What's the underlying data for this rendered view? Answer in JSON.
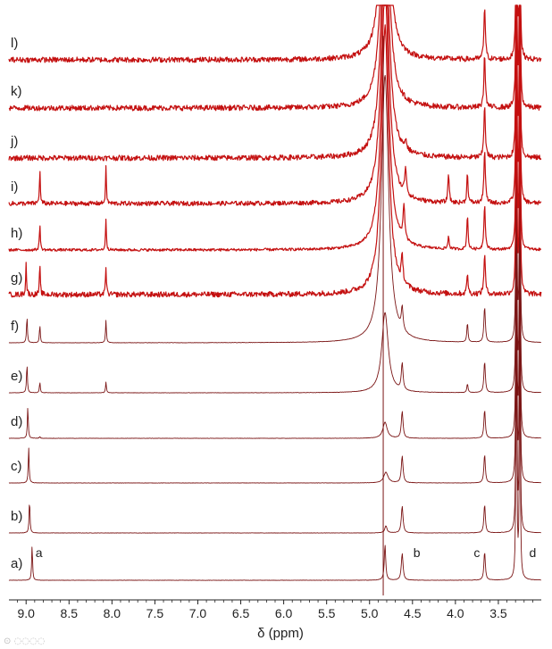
{
  "chart_data": {
    "type": "line",
    "title": "",
    "xlabel": "δ (ppm)",
    "ylabel": "",
    "xlim": [
      9.2,
      3.0
    ],
    "x_reversed": true,
    "grid": false,
    "x_ticks": [
      "9.0",
      "8.5",
      "8.0",
      "7.5",
      "7.0",
      "6.5",
      "6.0",
      "5.5",
      "5.0",
      "4.5",
      "4.0",
      "3.5"
    ],
    "x_tick_values": [
      9.0,
      8.5,
      8.0,
      7.5,
      7.0,
      6.5,
      6.0,
      5.5,
      5.0,
      4.5,
      4.0,
      3.5
    ],
    "colors": {
      "bright": "#c41010",
      "dark": "#7a1414",
      "axis": "#222222"
    },
    "peak_labels": [
      {
        "text": "a",
        "ppm": 8.85
      },
      {
        "text": "b",
        "ppm": 4.45
      },
      {
        "text": "c",
        "ppm": 3.75
      },
      {
        "text": "d",
        "ppm": 3.1
      }
    ],
    "spectra": [
      {
        "label": "a)",
        "baseline": 650,
        "noise": 0.2,
        "water": {
          "ppm": 4.82,
          "height": 40,
          "width": 0.01
        },
        "peaks": [
          {
            "ppm": 8.93,
            "height": 40,
            "width": 0.006
          },
          {
            "ppm": 4.62,
            "height": 30,
            "width": 0.012
          },
          {
            "ppm": 3.66,
            "height": 32,
            "width": 0.01
          },
          {
            "ppm": 3.29,
            "height": 300,
            "width": 0.006
          },
          {
            "ppm": 3.25,
            "height": 280,
            "width": 0.006
          }
        ]
      },
      {
        "label": "b)",
        "baseline": 597,
        "noise": 0.2,
        "water": {
          "ppm": 4.81,
          "height": 8,
          "width": 0.015
        },
        "peaks": [
          {
            "ppm": 8.96,
            "height": 38,
            "width": 0.006
          },
          {
            "ppm": 4.62,
            "height": 30,
            "width": 0.012
          },
          {
            "ppm": 3.66,
            "height": 32,
            "width": 0.01
          },
          {
            "ppm": 3.29,
            "height": 300,
            "width": 0.006
          },
          {
            "ppm": 3.25,
            "height": 280,
            "width": 0.006
          }
        ]
      },
      {
        "label": "c)",
        "baseline": 541,
        "noise": 0.2,
        "water": {
          "ppm": 4.81,
          "height": 12,
          "width": 0.03
        },
        "peaks": [
          {
            "ppm": 8.97,
            "height": 40,
            "width": 0.006
          },
          {
            "ppm": 4.62,
            "height": 30,
            "width": 0.012
          },
          {
            "ppm": 3.66,
            "height": 32,
            "width": 0.01
          },
          {
            "ppm": 3.29,
            "height": 300,
            "width": 0.006
          },
          {
            "ppm": 3.25,
            "height": 280,
            "width": 0.006
          }
        ]
      },
      {
        "label": "d)",
        "baseline": 491,
        "noise": 0.2,
        "water": {
          "ppm": 4.82,
          "height": 18,
          "width": 0.03
        },
        "peaks": [
          {
            "ppm": 8.98,
            "height": 36,
            "width": 0.006
          },
          {
            "ppm": 8.84,
            "height": 2,
            "width": 0.006
          },
          {
            "ppm": 4.62,
            "height": 30,
            "width": 0.012
          },
          {
            "ppm": 3.66,
            "height": 32,
            "width": 0.01
          },
          {
            "ppm": 3.29,
            "height": 300,
            "width": 0.006
          },
          {
            "ppm": 3.25,
            "height": 280,
            "width": 0.006
          }
        ]
      },
      {
        "label": "e)",
        "baseline": 440,
        "noise": 0.2,
        "water": {
          "ppm": 4.82,
          "height": 90,
          "width": 0.045
        },
        "peaks": [
          {
            "ppm": 8.99,
            "height": 33,
            "width": 0.006
          },
          {
            "ppm": 8.84,
            "height": 12,
            "width": 0.006
          },
          {
            "ppm": 8.07,
            "height": 12,
            "width": 0.006
          },
          {
            "ppm": 4.62,
            "height": 30,
            "width": 0.012
          },
          {
            "ppm": 3.86,
            "height": 10,
            "width": 0.008
          },
          {
            "ppm": 3.66,
            "height": 35,
            "width": 0.01
          },
          {
            "ppm": 3.29,
            "height": 300,
            "width": 0.006
          },
          {
            "ppm": 3.25,
            "height": 280,
            "width": 0.006
          }
        ]
      },
      {
        "label": "f)",
        "baseline": 384,
        "noise": 0.2,
        "water": {
          "ppm": 4.82,
          "height": 300,
          "width": 0.05
        },
        "peaks": [
          {
            "ppm": 8.99,
            "height": 30,
            "width": 0.006
          },
          {
            "ppm": 8.84,
            "height": 20,
            "width": 0.006
          },
          {
            "ppm": 8.07,
            "height": 25,
            "width": 0.006
          },
          {
            "ppm": 4.62,
            "height": 25,
            "width": 0.012
          },
          {
            "ppm": 3.86,
            "height": 22,
            "width": 0.008
          },
          {
            "ppm": 3.66,
            "height": 40,
            "width": 0.01
          },
          {
            "ppm": 3.29,
            "height": 300,
            "width": 0.006
          },
          {
            "ppm": 3.25,
            "height": 280,
            "width": 0.006
          }
        ]
      },
      {
        "label": "g)",
        "baseline": 330,
        "noise": 3,
        "water": {
          "ppm": 4.82,
          "height": 300,
          "width": 0.05
        },
        "peaks": [
          {
            "ppm": 9.0,
            "height": 35,
            "width": 0.006
          },
          {
            "ppm": 8.84,
            "height": 32,
            "width": 0.006
          },
          {
            "ppm": 8.07,
            "height": 32,
            "width": 0.006
          },
          {
            "ppm": 4.62,
            "height": 28,
            "width": 0.012
          },
          {
            "ppm": 3.86,
            "height": 25,
            "width": 0.008
          },
          {
            "ppm": 3.66,
            "height": 45,
            "width": 0.01
          },
          {
            "ppm": 3.29,
            "height": 300,
            "width": 0.006
          },
          {
            "ppm": 3.25,
            "height": 280,
            "width": 0.006
          }
        ]
      },
      {
        "label": "h)",
        "baseline": 280,
        "noise": 1.5,
        "water": {
          "ppm": 4.82,
          "height": 300,
          "width": 0.05
        },
        "peaks": [
          {
            "ppm": 8.84,
            "height": 30,
            "width": 0.006
          },
          {
            "ppm": 8.07,
            "height": 35,
            "width": 0.006
          },
          {
            "ppm": 4.6,
            "height": 38,
            "width": 0.012
          },
          {
            "ppm": 4.08,
            "height": 15,
            "width": 0.008
          },
          {
            "ppm": 3.86,
            "height": 40,
            "width": 0.008
          },
          {
            "ppm": 3.66,
            "height": 50,
            "width": 0.01
          },
          {
            "ppm": 3.29,
            "height": 300,
            "width": 0.006
          },
          {
            "ppm": 3.25,
            "height": 280,
            "width": 0.006
          }
        ]
      },
      {
        "label": "i)",
        "baseline": 228,
        "noise": 2.5,
        "water": {
          "ppm": 4.82,
          "height": 300,
          "width": 0.05
        },
        "peaks": [
          {
            "ppm": 8.84,
            "height": 38,
            "width": 0.006
          },
          {
            "ppm": 8.07,
            "height": 40,
            "width": 0.006
          },
          {
            "ppm": 4.58,
            "height": 30,
            "width": 0.012
          },
          {
            "ppm": 4.08,
            "height": 35,
            "width": 0.008
          },
          {
            "ppm": 3.86,
            "height": 35,
            "width": 0.008
          },
          {
            "ppm": 3.66,
            "height": 60,
            "width": 0.01
          },
          {
            "ppm": 3.29,
            "height": 300,
            "width": 0.006
          },
          {
            "ppm": 3.25,
            "height": 280,
            "width": 0.006
          }
        ]
      },
      {
        "label": "j)",
        "baseline": 177,
        "noise": 3,
        "water": {
          "ppm": 4.82,
          "height": 300,
          "width": 0.05
        },
        "peaks": [
          {
            "ppm": 4.58,
            "height": 10,
            "width": 0.012
          },
          {
            "ppm": 3.66,
            "height": 60,
            "width": 0.01
          },
          {
            "ppm": 3.29,
            "height": 300,
            "width": 0.006
          },
          {
            "ppm": 3.25,
            "height": 280,
            "width": 0.006
          }
        ]
      },
      {
        "label": "k)",
        "baseline": 121,
        "noise": 3,
        "water": {
          "ppm": 4.82,
          "height": 300,
          "width": 0.05
        },
        "peaks": [
          {
            "ppm": 3.66,
            "height": 60,
            "width": 0.01
          },
          {
            "ppm": 3.29,
            "height": 300,
            "width": 0.006
          },
          {
            "ppm": 3.25,
            "height": 280,
            "width": 0.006
          }
        ]
      },
      {
        "label": "l)",
        "baseline": 67,
        "noise": 3,
        "water": {
          "ppm": 4.82,
          "height": 300,
          "width": 0.05
        },
        "peaks": [
          {
            "ppm": 3.66,
            "height": 60,
            "width": 0.01
          },
          {
            "ppm": 3.29,
            "height": 300,
            "width": 0.006
          },
          {
            "ppm": 3.25,
            "height": 280,
            "width": 0.006
          }
        ]
      }
    ]
  }
}
